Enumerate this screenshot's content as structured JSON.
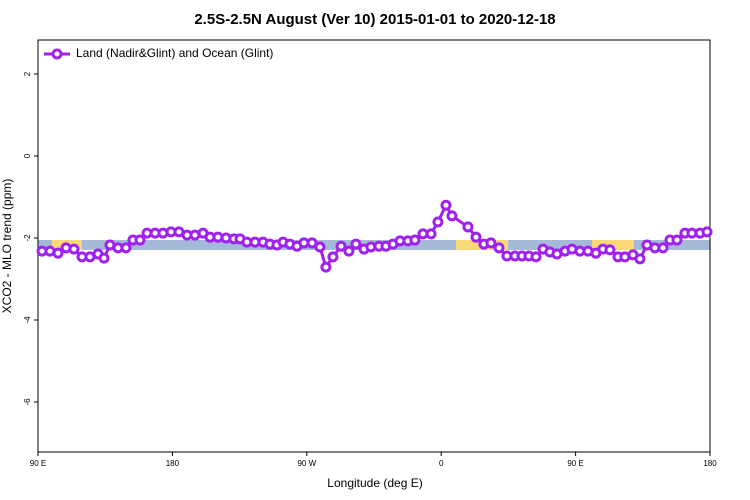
{
  "chart_data": {
    "type": "line",
    "title": "2.5S-2.5N August (Ver 10)   2015-01-01 to 2020-12-18",
    "x_label": "Longitude (deg E)",
    "y_label": "XCO2 - MLO trend (ppm)",
    "legend_position": "top-left",
    "xlim": [
      90,
      540
    ],
    "xticks": [
      {
        "value": 90,
        "label": "90 E"
      },
      180,
      {
        "value": 270,
        "label": "90 W"
      },
      {
        "value": 360,
        "label": "0"
      },
      {
        "value": 450,
        "label": "90 E"
      },
      {
        "value": 540,
        "label": "180"
      }
    ],
    "ylim": [
      -7.22,
      2.83
    ],
    "yticks": [
      2,
      0,
      -2,
      -4,
      -6
    ],
    "x": [
      92.7,
      98.0,
      103.4,
      108.8,
      114.1,
      119.5,
      124.8,
      130.2,
      134.2,
      138.2,
      143.6,
      148.9,
      153.6,
      158.3,
      163.0,
      168.4,
      173.7,
      179.1,
      184.4,
      189.8,
      195.1,
      200.5,
      205.2,
      210.5,
      215.9,
      221.2,
      225.3,
      229.9,
      235.3,
      240.7,
      245.3,
      250.0,
      254.1,
      258.7,
      263.4,
      268.1,
      273.5,
      278.8,
      282.8,
      287.5,
      292.9,
      298.2,
      302.9,
      308.3,
      312.9,
      318.3,
      323.0,
      327.7,
      332.4,
      337.7,
      342.4,
      347.8,
      353.2,
      357.8,
      363.2,
      367.2,
      377.9,
      383.3,
      388.6,
      393.3,
      398.7,
      404.0,
      409.4,
      414.1,
      418.8,
      423.5,
      428.2,
      432.8,
      437.5,
      442.9,
      447.6,
      452.9,
      458.3,
      463.6,
      468.3,
      473.0,
      478.4,
      483.0,
      488.4,
      493.1,
      497.8,
      503.1,
      508.5,
      513.2,
      517.9,
      523.2,
      527.9,
      533.3,
      538.0
    ],
    "series": [
      {
        "name": "Land (Nadir&Glint) and Ocean (Glint)",
        "color": "#a020f0",
        "values": [
          -2.32,
          -2.32,
          -2.37,
          -2.24,
          -2.27,
          -2.46,
          -2.46,
          -2.39,
          -2.49,
          -2.17,
          -2.24,
          -2.24,
          -2.05,
          -2.05,
          -1.88,
          -1.88,
          -1.88,
          -1.85,
          -1.85,
          -1.93,
          -1.93,
          -1.88,
          -1.98,
          -1.98,
          -2.0,
          -2.02,
          -2.02,
          -2.1,
          -2.1,
          -2.1,
          -2.15,
          -2.17,
          -2.1,
          -2.15,
          -2.2,
          -2.12,
          -2.12,
          -2.22,
          -2.71,
          -2.46,
          -2.2,
          -2.32,
          -2.15,
          -2.27,
          -2.22,
          -2.2,
          -2.2,
          -2.15,
          -2.07,
          -2.07,
          -2.05,
          -1.9,
          -1.9,
          -1.61,
          -1.2,
          -1.46,
          -1.73,
          -1.98,
          -2.15,
          -2.12,
          -2.24,
          -2.44,
          -2.44,
          -2.44,
          -2.44,
          -2.46,
          -2.27,
          -2.34,
          -2.39,
          -2.32,
          -2.27,
          -2.32,
          -2.32,
          -2.37,
          -2.27,
          -2.29,
          -2.46,
          -2.46,
          -2.41,
          -2.51,
          -2.17,
          -2.24,
          -2.24,
          -2.05,
          -2.05,
          -1.88,
          -1.88,
          -1.88,
          -1.85
        ]
      }
    ]
  }
}
